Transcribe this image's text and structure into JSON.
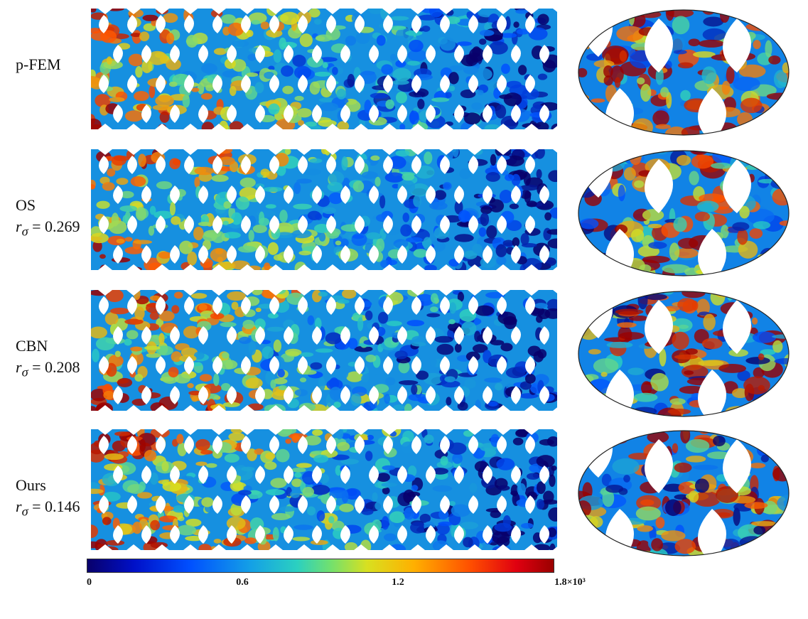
{
  "rows": [
    {
      "label": "p-FEM",
      "metric": ""
    },
    {
      "label": "OS",
      "metric_symbol": "r",
      "metric_sub": "σ",
      "metric_value": "= 0.269"
    },
    {
      "label": "CBN",
      "metric_symbol": "r",
      "metric_sub": "σ",
      "metric_value": "= 0.208"
    },
    {
      "label": "Ours",
      "metric_symbol": "r",
      "metric_sub": "σ",
      "metric_value": "= 0.146"
    }
  ],
  "colorbar": {
    "ticks": [
      "0",
      "0.6",
      "1.2",
      "1.8×10³"
    ],
    "colors": [
      "#08006b",
      "#0050ff",
      "#2bd0c0",
      "#d8e020",
      "#ff5000",
      "#9a0000"
    ]
  }
}
